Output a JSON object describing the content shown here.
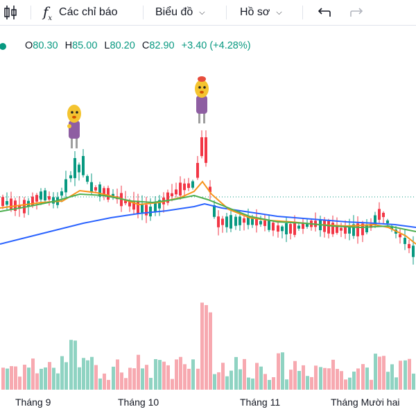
{
  "toolbar": {
    "indicators_label": "Các chỉ báo",
    "chart_label": "Biểu đồ",
    "profile_label": "Hồ sơ"
  },
  "ohlc": {
    "open_key": "O",
    "open": "80.30",
    "high_key": "H",
    "high": "85.00",
    "low_key": "L",
    "low": "80.20",
    "close_key": "C",
    "close": "82.90",
    "change": "+3.40 (+4.28%)"
  },
  "colors": {
    "up": "#089981",
    "down": "#f23645",
    "ma_long": "#2962ff",
    "ma_mid": "#f7931a",
    "ma_short": "#4caf50"
  },
  "x_axis": {
    "labels": [
      "Tháng 9",
      "Tháng 10",
      "Tháng 11",
      "Tháng Mười hai"
    ]
  }
}
